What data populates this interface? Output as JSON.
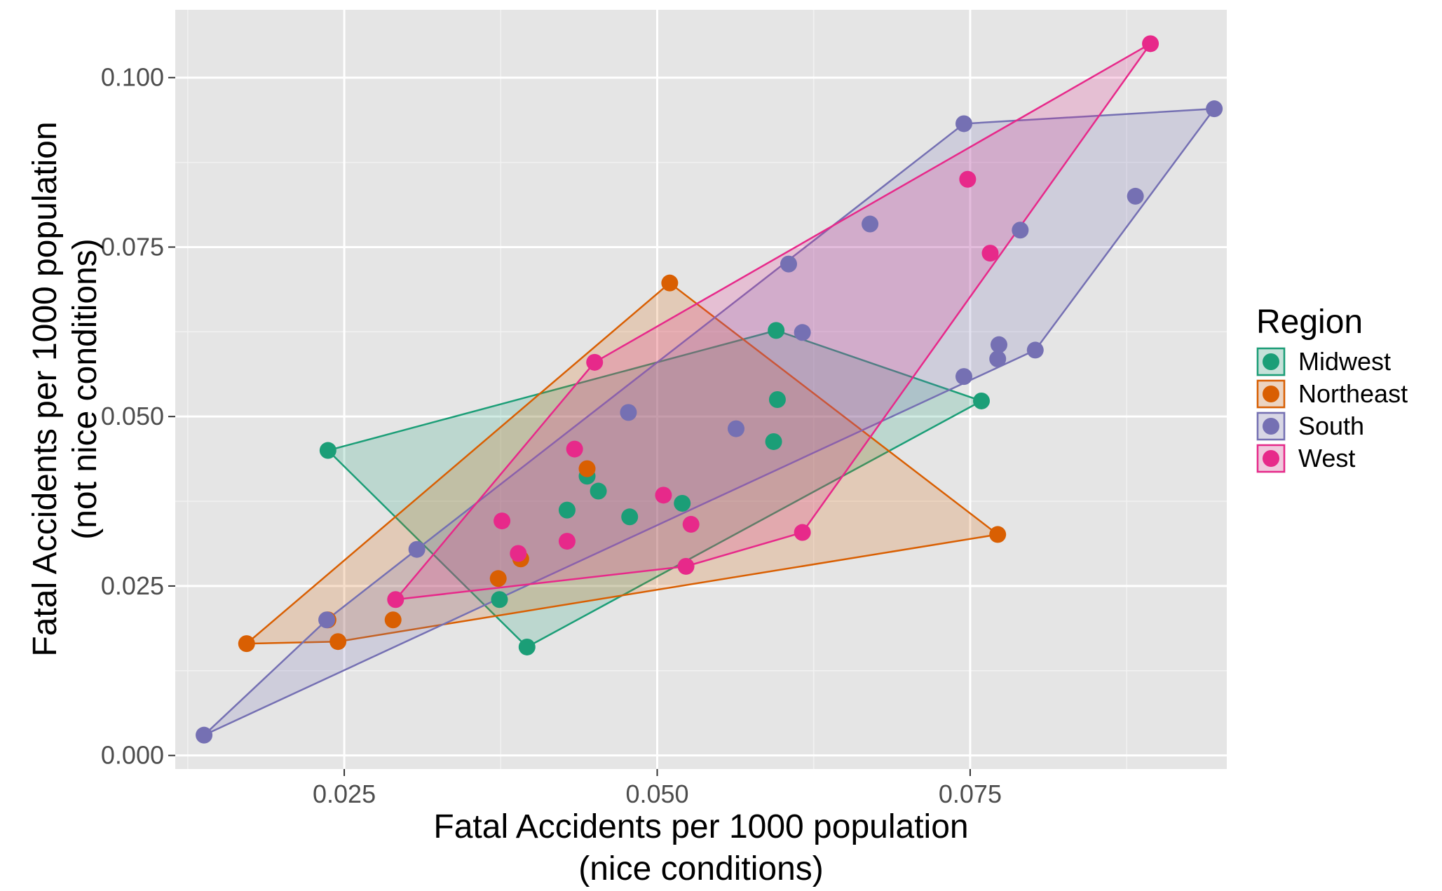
{
  "chart_data": {
    "type": "scatter",
    "title": "",
    "xlabel": [
      "Fatal Accidents per 1000 population",
      "(nice conditions)"
    ],
    "ylabel": [
      "Fatal Accidents per 1000 population",
      "(not nice conditions)"
    ],
    "xlim": [
      0.0115,
      0.0955
    ],
    "ylim": [
      -0.002,
      0.11
    ],
    "x_ticks": [
      0.025,
      0.05,
      0.075
    ],
    "x_tick_labels": [
      "0.025",
      "0.050",
      "0.075"
    ],
    "y_ticks": [
      0.0,
      0.025,
      0.05,
      0.075,
      0.1
    ],
    "y_tick_labels": [
      "0.000",
      "0.025",
      "0.050",
      "0.075",
      "0.100"
    ],
    "grid": true,
    "background": "#e5e5e5",
    "hulls": true,
    "legend": {
      "title": "Region",
      "position": "right"
    },
    "series": [
      {
        "name": "Midwest",
        "color": "#1b9e77",
        "points": [
          [
            0.0237,
            0.045
          ],
          [
            0.0396,
            0.016
          ],
          [
            0.0374,
            0.023
          ],
          [
            0.0595,
            0.0627
          ],
          [
            0.0759,
            0.0523
          ],
          [
            0.0596,
            0.0525
          ],
          [
            0.0593,
            0.0463
          ],
          [
            0.052,
            0.0372
          ],
          [
            0.0478,
            0.0352
          ],
          [
            0.0453,
            0.039
          ],
          [
            0.0444,
            0.0412
          ],
          [
            0.0428,
            0.0362
          ]
        ]
      },
      {
        "name": "Northeast",
        "color": "#d95f02",
        "points": [
          [
            0.0172,
            0.0165
          ],
          [
            0.0237,
            0.02
          ],
          [
            0.0245,
            0.0168
          ],
          [
            0.051,
            0.0697
          ],
          [
            0.0772,
            0.0326
          ],
          [
            0.0289,
            0.02
          ],
          [
            0.0373,
            0.0261
          ],
          [
            0.0391,
            0.029
          ],
          [
            0.0444,
            0.0423
          ]
        ]
      },
      {
        "name": "South",
        "color": "#7570b3",
        "points": [
          [
            0.0138,
            0.003
          ],
          [
            0.0745,
            0.0932
          ],
          [
            0.0945,
            0.0954
          ],
          [
            0.0802,
            0.0598
          ],
          [
            0.0745,
            0.0559
          ],
          [
            0.0308,
            0.0304
          ],
          [
            0.0772,
            0.0585
          ],
          [
            0.0773,
            0.0606
          ],
          [
            0.079,
            0.0775
          ],
          [
            0.0882,
            0.0825
          ],
          [
            0.067,
            0.0784
          ],
          [
            0.0605,
            0.0725
          ],
          [
            0.0616,
            0.0624
          ],
          [
            0.0563,
            0.0482
          ],
          [
            0.0477,
            0.0506
          ],
          [
            0.0236,
            0.02
          ]
        ]
      },
      {
        "name": "West",
        "color": "#e7298a",
        "points": [
          [
            0.0291,
            0.023
          ],
          [
            0.045,
            0.058
          ],
          [
            0.0894,
            0.105
          ],
          [
            0.0616,
            0.0329
          ],
          [
            0.0523,
            0.0279
          ],
          [
            0.0748,
            0.085
          ],
          [
            0.0766,
            0.0741
          ],
          [
            0.0434,
            0.0452
          ],
          [
            0.0505,
            0.0384
          ],
          [
            0.0527,
            0.0341
          ],
          [
            0.0376,
            0.0346
          ],
          [
            0.0389,
            0.0298
          ],
          [
            0.0428,
            0.0316
          ]
        ]
      }
    ]
  }
}
